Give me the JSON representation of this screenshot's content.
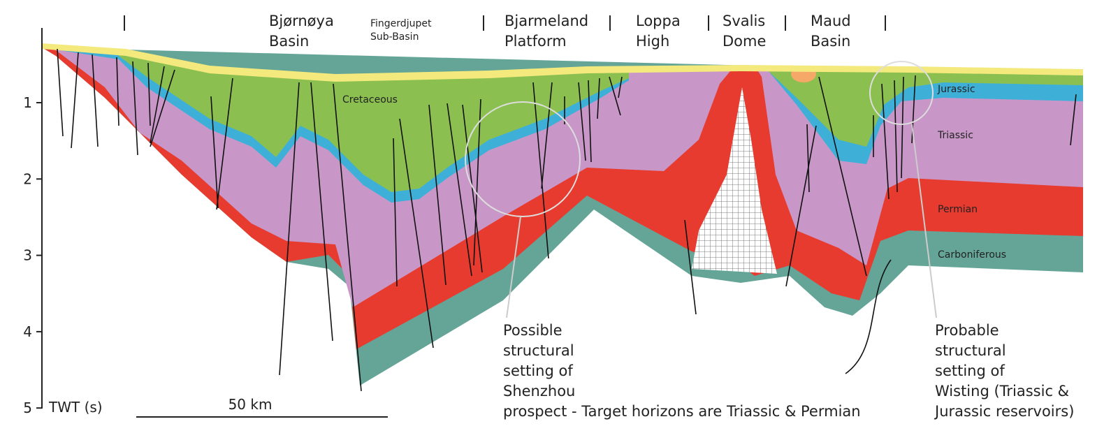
{
  "axis": {
    "label": "TWT (s)",
    "ticks": [
      1,
      2,
      3,
      4,
      5
    ]
  },
  "scale_bar": "50 km",
  "regions": [
    {
      "lines": [
        "Bjørnøya",
        "Basin"
      ]
    },
    {
      "lines": [
        "Fingerdjupet",
        "Sub-Basin"
      ]
    },
    {
      "lines": [
        "Bjarmeland",
        "Platform"
      ]
    },
    {
      "lines": [
        "Loppa",
        "High"
      ]
    },
    {
      "lines": [
        "Svalis",
        "Dome"
      ]
    },
    {
      "lines": [
        "Maud",
        "Basin"
      ]
    }
  ],
  "layer_labels": [
    "Cretaceous",
    "Jurassic",
    "Triassic",
    "Permian",
    "Carboniferous"
  ],
  "annotations": [
    {
      "lines": [
        "Possible",
        "structural",
        "setting of",
        "Shenzhou",
        "prospect - Target horizons are Triassic & Permian"
      ]
    },
    {
      "lines": [
        "Probable",
        "structural",
        "setting of",
        "Wisting (Triassic &",
        "Jurassic reservoirs)"
      ]
    }
  ]
}
